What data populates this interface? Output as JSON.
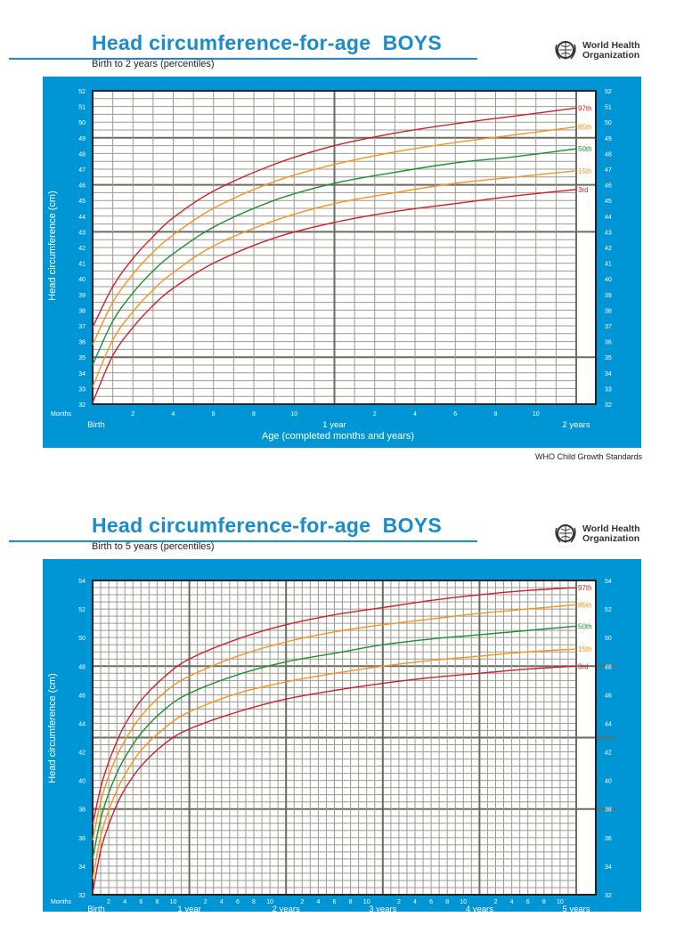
{
  "charts_header": [
    {
      "title": "Head circumference-for-age  BOYS",
      "subtitle": "Birth to 2 years (percentiles)"
    },
    {
      "title": "Head circumference-for-age  BOYS",
      "subtitle": "Birth to 5 years (percentiles)"
    }
  ],
  "logo": {
    "line1": "World Health",
    "line2": "Organization"
  },
  "source": "WHO Child Growth Standards",
  "colors": {
    "panel": "#0096d6",
    "title": "#1a8ccc",
    "97th": "#d0202a",
    "85th": "#f7941d",
    "50th": "#1e8f2e",
    "15th": "#f7941d",
    "3rd": "#d0202a"
  },
  "chart_data": [
    {
      "type": "line",
      "ylabel": "Head circumference (cm)",
      "xlabel": "Age (completed months and years)",
      "months_label": "Months",
      "ylim": [
        32,
        52
      ],
      "xlim_months": [
        0,
        24
      ],
      "y_ticks": [
        32,
        33,
        34,
        35,
        36,
        37,
        38,
        39,
        40,
        41,
        42,
        43,
        44,
        45,
        46,
        47,
        48,
        49,
        50,
        51,
        52
      ],
      "x_month_ticks": [
        "2",
        "4",
        "6",
        "8",
        "10"
      ],
      "x_year_labels": [
        "Birth",
        "1 year",
        "2 years"
      ],
      "grid": true,
      "x": [
        0,
        1,
        2,
        3,
        4,
        6,
        9,
        12,
        15,
        18,
        21,
        24
      ],
      "series": [
        {
          "name": "97th",
          "values": [
            36.9,
            39.5,
            41.3,
            42.7,
            43.9,
            45.6,
            47.3,
            48.5,
            49.3,
            49.9,
            50.4,
            50.9
          ]
        },
        {
          "name": "85th",
          "values": [
            35.8,
            38.5,
            40.3,
            41.7,
            42.8,
            44.5,
            46.2,
            47.3,
            48.1,
            48.7,
            49.2,
            49.7
          ]
        },
        {
          "name": "50th",
          "values": [
            34.5,
            37.3,
            39.1,
            40.5,
            41.6,
            43.3,
            45.0,
            46.1,
            46.8,
            47.4,
            47.8,
            48.3
          ]
        },
        {
          "name": "15th",
          "values": [
            33.1,
            36.1,
            37.9,
            39.3,
            40.4,
            42.1,
            43.7,
            44.8,
            45.5,
            46.1,
            46.5,
            46.9
          ]
        },
        {
          "name": "3rd",
          "values": [
            32.1,
            35.1,
            36.9,
            38.3,
            39.4,
            41.0,
            42.6,
            43.6,
            44.3,
            44.8,
            45.3,
            45.7
          ]
        }
      ]
    },
    {
      "type": "line",
      "ylabel": "Head circumference (cm)",
      "months_label": "Months",
      "ylim": [
        32,
        54
      ],
      "xlim_months": [
        0,
        60
      ],
      "y_ticks": [
        32,
        34,
        36,
        38,
        40,
        42,
        44,
        46,
        48,
        50,
        52,
        54
      ],
      "x_month_ticks": [
        "2",
        "4",
        "6",
        "8",
        "10"
      ],
      "x_year_labels": [
        "Birth",
        "1 year",
        "2 years",
        "3 years",
        "4 years",
        "5 years"
      ],
      "grid": true,
      "x": [
        0,
        1,
        2,
        3,
        4,
        6,
        9,
        12,
        18,
        24,
        30,
        36,
        42,
        48,
        54,
        60
      ],
      "series": [
        {
          "name": "97th",
          "values": [
            36.9,
            39.5,
            41.3,
            42.7,
            43.9,
            45.6,
            47.3,
            48.5,
            49.9,
            50.9,
            51.6,
            52.1,
            52.6,
            53.0,
            53.3,
            53.5
          ]
        },
        {
          "name": "85th",
          "values": [
            35.8,
            38.5,
            40.3,
            41.7,
            42.8,
            44.5,
            46.2,
            47.3,
            48.7,
            49.7,
            50.4,
            50.9,
            51.3,
            51.7,
            52.0,
            52.3
          ]
        },
        {
          "name": "50th",
          "values": [
            34.5,
            37.3,
            39.1,
            40.5,
            41.6,
            43.3,
            45.0,
            46.1,
            47.4,
            48.3,
            48.9,
            49.5,
            49.9,
            50.2,
            50.5,
            50.8
          ]
        },
        {
          "name": "15th",
          "values": [
            33.1,
            36.1,
            37.9,
            39.3,
            40.4,
            42.1,
            43.7,
            44.8,
            46.1,
            46.9,
            47.5,
            48.0,
            48.4,
            48.7,
            49.0,
            49.2
          ]
        },
        {
          "name": "3rd",
          "values": [
            32.1,
            35.1,
            36.9,
            38.3,
            39.4,
            41.0,
            42.6,
            43.6,
            44.8,
            45.7,
            46.3,
            46.8,
            47.2,
            47.5,
            47.8,
            48.0
          ]
        }
      ]
    }
  ]
}
